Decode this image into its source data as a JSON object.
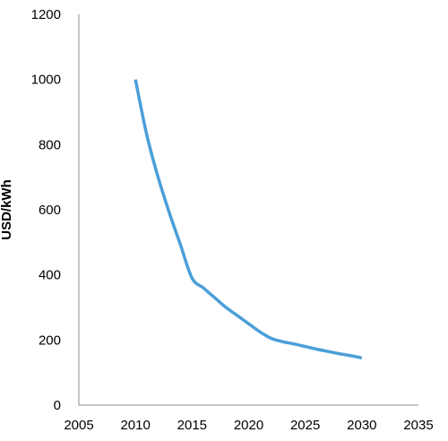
{
  "chart_data": {
    "type": "line",
    "title": "",
    "xlabel": "",
    "ylabel": "USD/kWh",
    "xlim": [
      2005,
      2035
    ],
    "ylim": [
      0,
      1200
    ],
    "x_ticks": [
      2005,
      2010,
      2015,
      2020,
      2025,
      2030,
      2035
    ],
    "y_ticks": [
      0,
      200,
      400,
      600,
      800,
      1000,
      1200
    ],
    "grid": false,
    "legend": "none",
    "series": [
      {
        "color": "#4A9FD8",
        "x": [
          2010,
          2011,
          2012,
          2013,
          2014,
          2015,
          2016,
          2017,
          2018,
          2019,
          2020,
          2021,
          2022,
          2023,
          2024,
          2025,
          2026,
          2027,
          2028,
          2029,
          2030
        ],
        "y": [
          1000,
          830,
          700,
          590,
          490,
          390,
          360,
          330,
          300,
          275,
          250,
          225,
          205,
          195,
          188,
          180,
          172,
          165,
          158,
          152,
          145
        ]
      }
    ]
  }
}
